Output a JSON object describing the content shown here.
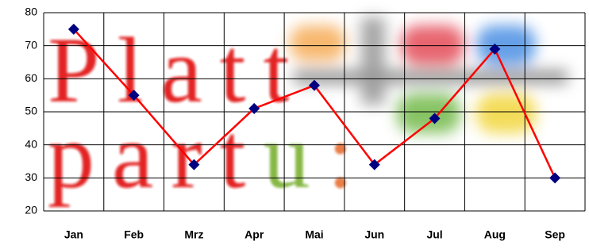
{
  "chart_data": {
    "type": "line",
    "categories": [
      "Jan",
      "Feb",
      "Mrz",
      "Apr",
      "Mai",
      "Jun",
      "Jul",
      "Aug",
      "Sep"
    ],
    "series": [
      {
        "color": "#ff0000",
        "marker_color": "#000080",
        "values": [
          75,
          55,
          34,
          51,
          58,
          34,
          48,
          69,
          30
        ]
      }
    ],
    "ylim": [
      20,
      80
    ],
    "yticks": [
      20,
      30,
      40,
      50,
      60,
      70,
      80
    ],
    "grid": true,
    "watermark": [
      [
        {
          "text": "Platt",
          "color": "#e01010"
        }
      ],
      [
        {
          "text": "part",
          "color": "#e01010"
        },
        {
          "text": "u",
          "color": "#7ab030"
        },
        {
          "text": ":",
          "color": "#e87030"
        }
      ]
    ]
  }
}
